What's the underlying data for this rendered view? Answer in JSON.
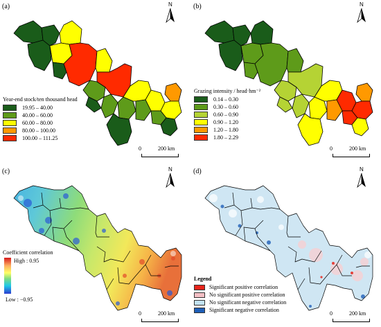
{
  "panels": {
    "a": {
      "label": "(a)",
      "legend_title": "Year-end stock/ten thousand head",
      "classes": [
        {
          "label": "19.95 – 40.00",
          "color": "#1a5c1a"
        },
        {
          "label": "40.00 – 60.00",
          "color": "#5e9b1a"
        },
        {
          "label": "60.00 – 80.00",
          "color": "#ffff00"
        },
        {
          "label": "80.00 – 100.00",
          "color": "#ff9900"
        },
        {
          "label": "100.00 – 111.25",
          "color": "#ff2a00"
        }
      ]
    },
    "b": {
      "label": "(b)",
      "legend_title": "Grazing intensity / head·hm⁻²",
      "classes": [
        {
          "label": "0.14 – 0.30",
          "color": "#1a5c1a"
        },
        {
          "label": "0.30 – 0.60",
          "color": "#5e9b1a"
        },
        {
          "label": "0.60 – 0.90",
          "color": "#b5d334"
        },
        {
          "label": "0.90 – 1.20",
          "color": "#ffff00"
        },
        {
          "label": "1.20 – 1.80",
          "color": "#ff9900"
        },
        {
          "label": "1.80 – 2.29",
          "color": "#ff2a00"
        }
      ]
    },
    "c": {
      "label": "(c)",
      "legend_title": "Coefficient correlation",
      "high_label": "High : 0.95",
      "low_label": "Low : −0.95"
    },
    "d": {
      "label": "(d)",
      "legend_title": "Legend",
      "classes": [
        {
          "label": "Significant positive correlation",
          "color": "#e8251b"
        },
        {
          "label": "No significant positive correlation",
          "color": "#f4bfc4"
        },
        {
          "label": "No significant negative correlation",
          "color": "#c3e3f2"
        },
        {
          "label": "Significant negative correlation",
          "color": "#1e5fb8"
        }
      ]
    }
  },
  "north_label": "N",
  "scale": {
    "start": "0",
    "end": "200 km"
  },
  "colors": {
    "outline": "#000000"
  }
}
